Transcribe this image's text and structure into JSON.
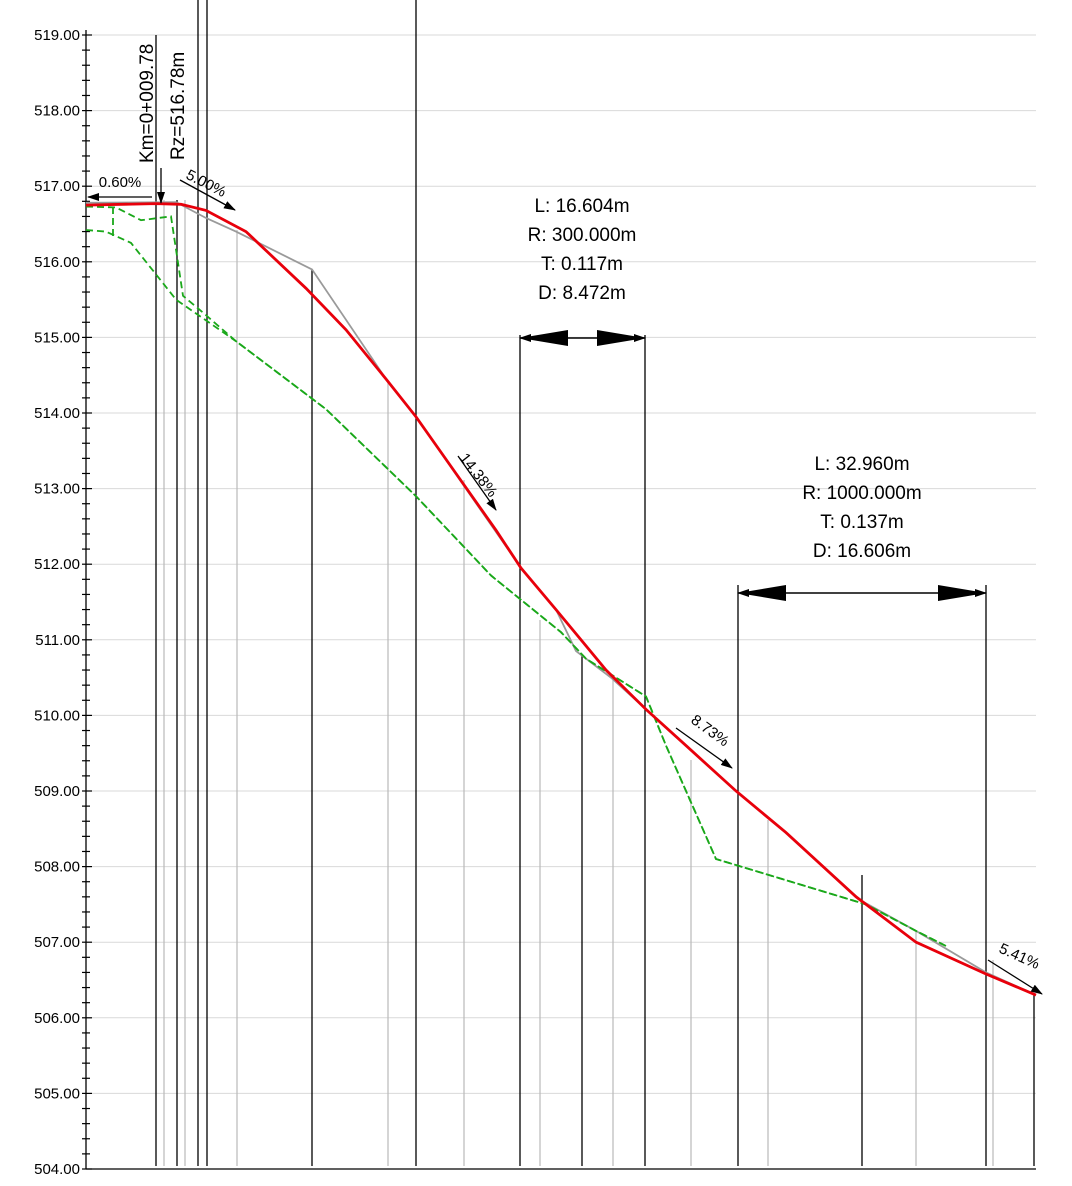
{
  "colors": {
    "design_line": "#e8000b",
    "terrain_line": "#1aa81a",
    "tangent_line": "#9a9a9a",
    "grid_line": "#d9d9d9",
    "station_line": "#000000",
    "minor_station_line": "#b9b9b9"
  },
  "y_axis": {
    "labels": [
      "519.00",
      "518.00",
      "517.00",
      "516.00",
      "515.00",
      "514.00",
      "513.00",
      "512.00",
      "511.00",
      "510.00",
      "509.00",
      "508.00",
      "507.00",
      "506.00",
      "505.00",
      "504.00"
    ]
  },
  "vertex_label": {
    "km": "Km=0+009.78",
    "rz": "Rz=516.78m"
  },
  "slopes": [
    {
      "text": "0.60%"
    },
    {
      "text": "5.00%"
    },
    {
      "text": "14.38%"
    },
    {
      "text": "8.73%"
    },
    {
      "text": "5.41%"
    }
  ],
  "curves": [
    {
      "L": "L: 16.604m",
      "R": "R: 300.000m",
      "T": "T: 0.117m",
      "D": "D: 8.472m"
    },
    {
      "L": "L: 32.960m",
      "R": "R: 1000.000m",
      "T": "T: 0.137m",
      "D": "D: 16.606m"
    }
  ],
  "chart_data": {
    "type": "line",
    "ylim": [
      504,
      519
    ],
    "series": [
      {
        "points": [
          [
            0,
            516.75
          ],
          [
            70,
            516.77
          ],
          [
            95,
            516.76
          ],
          [
            120,
            516.68
          ],
          [
            160,
            516.4
          ],
          [
            220,
            515.65
          ],
          [
            260,
            515.1
          ],
          [
            300,
            514.45
          ],
          [
            330,
            513.95
          ],
          [
            370,
            513.2
          ],
          [
            410,
            512.45
          ],
          [
            435,
            511.95
          ],
          [
            470,
            511.4
          ],
          [
            520,
            510.6
          ],
          [
            560,
            510.08
          ],
          [
            600,
            509.6
          ],
          [
            650,
            509.0
          ],
          [
            700,
            508.45
          ],
          [
            770,
            507.6
          ],
          [
            830,
            507.0
          ],
          [
            900,
            506.58
          ],
          [
            950,
            506.3
          ]
        ]
      },
      {
        "points": [
          [
            0,
            516.73
          ],
          [
            30,
            516.72
          ],
          [
            55,
            516.55
          ],
          [
            85,
            516.6
          ],
          [
            97,
            515.55
          ],
          [
            115,
            515.35
          ],
          [
            150,
            514.95
          ],
          [
            240,
            514.05
          ],
          [
            330,
            512.9
          ],
          [
            405,
            511.85
          ],
          [
            475,
            511.1
          ],
          [
            500,
            510.75
          ],
          [
            560,
            510.25
          ],
          [
            580,
            509.6
          ],
          [
            630,
            508.1
          ],
          [
            780,
            507.5
          ],
          [
            830,
            507.15
          ],
          [
            860,
            506.95
          ]
        ]
      },
      {
        "points": [
          [
            0,
            516.42
          ],
          [
            20,
            516.4
          ],
          [
            45,
            516.25
          ],
          [
            90,
            515.5
          ],
          [
            150,
            514.95
          ],
          [
            240,
            514.05
          ],
          [
            330,
            512.9
          ],
          [
            405,
            511.85
          ],
          [
            475,
            511.1
          ],
          [
            500,
            510.75
          ],
          [
            560,
            510.25
          ],
          [
            580,
            509.6
          ],
          [
            630,
            508.1
          ],
          [
            780,
            507.5
          ],
          [
            830,
            507.15
          ],
          [
            860,
            506.95
          ]
        ]
      },
      {
        "points": [
          [
            0,
            516.78
          ],
          [
            90,
            516.79
          ],
          [
            120,
            516.58
          ],
          [
            150,
            516.4
          ],
          [
            226,
            515.9
          ],
          [
            300,
            514.45
          ],
          [
            330,
            513.95
          ],
          [
            435,
            511.95
          ],
          [
            470,
            511.4
          ],
          [
            490,
            510.85
          ],
          [
            525,
            510.5
          ],
          [
            560,
            510.08
          ],
          [
            650,
            509.0
          ],
          [
            700,
            508.45
          ],
          [
            775,
            507.55
          ],
          [
            830,
            507.15
          ],
          [
            900,
            506.6
          ],
          [
            950,
            506.3
          ]
        ]
      }
    ]
  }
}
